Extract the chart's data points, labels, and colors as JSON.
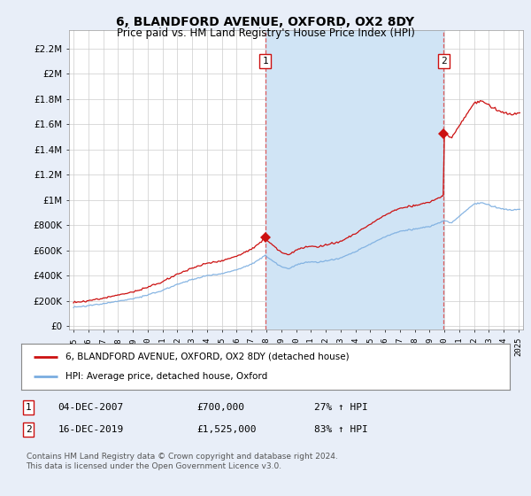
{
  "title": "6, BLANDFORD AVENUE, OXFORD, OX2 8DY",
  "subtitle": "Price paid vs. HM Land Registry's House Price Index (HPI)",
  "title_fontsize": 10,
  "subtitle_fontsize": 8.5,
  "ylabel_ticks": [
    "£0",
    "£200K",
    "£400K",
    "£600K",
    "£800K",
    "£1M",
    "£1.2M",
    "£1.4M",
    "£1.6M",
    "£1.8M",
    "£2M",
    "£2.2M"
  ],
  "ytick_values": [
    0,
    200000,
    400000,
    600000,
    800000,
    1000000,
    1200000,
    1400000,
    1600000,
    1800000,
    2000000,
    2200000
  ],
  "xlim": [
    1994.7,
    2025.3
  ],
  "ylim": [
    -30000,
    2350000
  ],
  "x_years": [
    1995,
    1996,
    1997,
    1998,
    1999,
    2000,
    2001,
    2002,
    2003,
    2004,
    2005,
    2006,
    2007,
    2008,
    2009,
    2010,
    2011,
    2012,
    2013,
    2014,
    2015,
    2016,
    2017,
    2018,
    2019,
    2020,
    2021,
    2022,
    2023,
    2024,
    2025
  ],
  "hpi_line_color": "#7aade0",
  "property_line_color": "#cc1111",
  "background_color": "#e8eef8",
  "plot_bg_color": "#ffffff",
  "grid_color": "#cccccc",
  "sale1_year": 2007.92,
  "sale1_price": 700000,
  "sale2_year": 2019.96,
  "sale2_price": 1525000,
  "sale1_label": "1",
  "sale2_label": "2",
  "legend_line1": "6, BLANDFORD AVENUE, OXFORD, OX2 8DY (detached house)",
  "legend_line2": "HPI: Average price, detached house, Oxford",
  "footnote": "Contains HM Land Registry data © Crown copyright and database right 2024.\nThis data is licensed under the Open Government Licence v3.0.",
  "shaded_region_color": "#d0e4f5",
  "dashed_line_color": "#dd4444"
}
